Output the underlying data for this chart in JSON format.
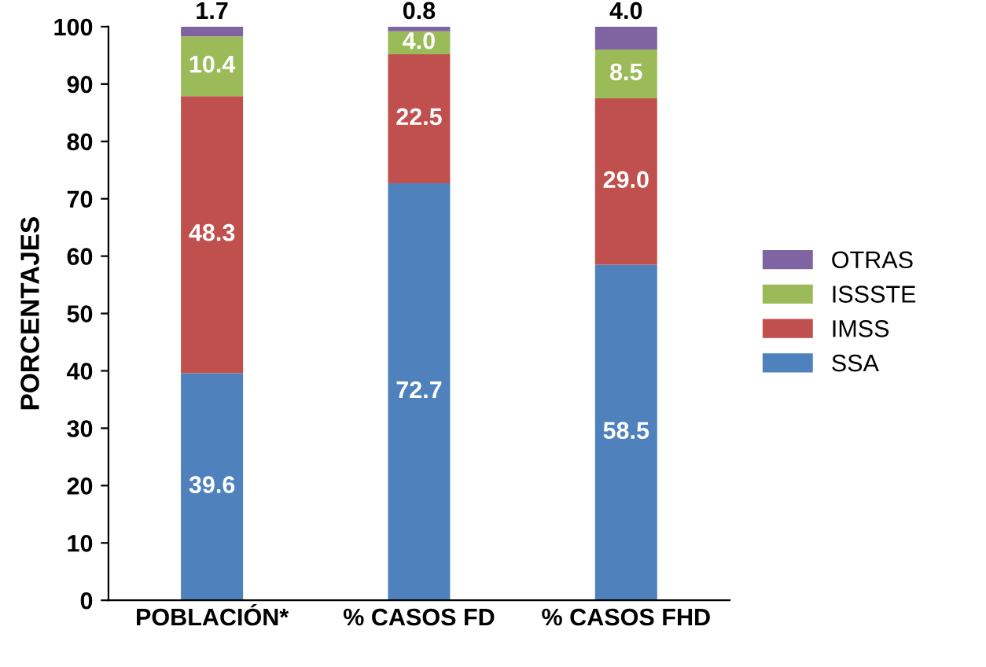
{
  "chart_data": {
    "type": "bar",
    "stacked": true,
    "ylabel": "PORCENTAJES",
    "categories": [
      "POBLACIÓN*",
      "% CASOS FD",
      "% CASOS FHD"
    ],
    "series": [
      {
        "name": "SSA",
        "color": "#4f81bd",
        "values": [
          39.6,
          72.7,
          58.5
        ],
        "value_labels": [
          "39.6",
          "72.7",
          "58.5"
        ]
      },
      {
        "name": "IMSS",
        "color": "#c0504d",
        "values": [
          48.3,
          22.5,
          29.0
        ],
        "value_labels": [
          "48.3",
          "22.5",
          "29.0"
        ]
      },
      {
        "name": "ISSSTE",
        "color": "#9bbb59",
        "values": [
          10.4,
          4.0,
          8.5
        ],
        "value_labels": [
          "10.4",
          "4.0",
          "8.5"
        ]
      },
      {
        "name": "OTRAS",
        "color": "#8064a2",
        "values": [
          1.7,
          0.8,
          4.0
        ],
        "value_labels": [
          "1.7",
          "0.8",
          "4.0"
        ]
      }
    ],
    "ylim": [
      0,
      100
    ],
    "yticks": [
      0,
      10,
      20,
      30,
      40,
      50,
      60,
      70,
      80,
      90,
      100
    ],
    "legend": "right",
    "grid": false
  }
}
